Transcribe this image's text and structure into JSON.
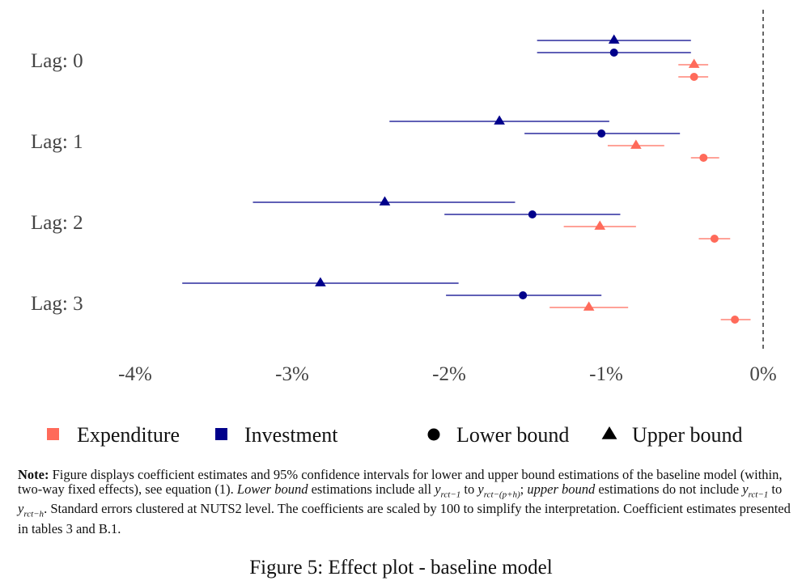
{
  "chart_data": {
    "type": "scatter",
    "title": "",
    "xlabel": "",
    "ylabel": "",
    "xlim": [
      -4.1,
      0.1
    ],
    "x_ticks": [
      -4,
      -3,
      -2,
      -1,
      0
    ],
    "x_tick_labels": [
      "-4%",
      "-3%",
      "-2%",
      "-1%",
      "0%"
    ],
    "categories": [
      "Lag: 0",
      "Lag: 1",
      "Lag: 2",
      "Lag: 3"
    ],
    "reference_line": {
      "x": 0,
      "style": "dashed"
    },
    "grid": false,
    "legend_placement": "bottom",
    "colors": {
      "Expenditure": "#FF6A5A",
      "Investment": "#00008B"
    },
    "shapes": {
      "Lower bound": "circle",
      "Upper bound": "triangle"
    },
    "legend": [
      {
        "label": "Expenditure",
        "kind": "color",
        "symbol": "square"
      },
      {
        "label": "Investment",
        "kind": "color",
        "symbol": "square"
      },
      {
        "label": "Lower bound",
        "kind": "shape",
        "symbol": "circle"
      },
      {
        "label": "Upper bound",
        "kind": "shape",
        "symbol": "triangle"
      }
    ],
    "series": [
      {
        "name": "Investment",
        "bound": "Upper bound",
        "estimate": [
          -0.95,
          -1.68,
          -2.41,
          -2.82
        ],
        "ci_low": [
          -1.44,
          -2.38,
          -3.25,
          -3.7
        ],
        "ci_high": [
          -0.46,
          -0.98,
          -1.58,
          -1.94
        ]
      },
      {
        "name": "Investment",
        "bound": "Lower bound",
        "estimate": [
          -0.95,
          -1.03,
          -1.47,
          -1.53
        ],
        "ci_low": [
          -1.44,
          -1.52,
          -2.03,
          -2.02
        ],
        "ci_high": [
          -0.46,
          -0.53,
          -0.91,
          -1.03
        ]
      },
      {
        "name": "Expenditure",
        "bound": "Upper bound",
        "estimate": [
          -0.44,
          -0.81,
          -1.04,
          -1.11
        ],
        "ci_low": [
          -0.54,
          -0.99,
          -1.27,
          -1.36
        ],
        "ci_high": [
          -0.35,
          -0.63,
          -0.81,
          -0.86
        ]
      },
      {
        "name": "Expenditure",
        "bound": "Lower bound",
        "estimate": [
          -0.44,
          -0.38,
          -0.31,
          -0.18
        ],
        "ci_low": [
          -0.54,
          -0.46,
          -0.41,
          -0.27
        ],
        "ci_high": [
          -0.35,
          -0.28,
          -0.21,
          -0.08
        ]
      }
    ]
  },
  "note": {
    "label": "Note:",
    "t1": " Figure displays coefficient estimates and 95% confidence intervals for lower and upper bound estimations of the baseline model (within, two-way fixed effects), see equation (1). ",
    "lower_bound": "Lower bound",
    "t2": " estimations include all ",
    "y1": "y",
    "s1": "rct−1",
    "t3": " to ",
    "y2": "y",
    "s2": "rct−(p+h)",
    "t4": "; ",
    "upper_bound": "upper bound",
    "t5": " estimations do not include ",
    "y3": "y",
    "s3": "rct−1",
    "t6": " to ",
    "y4": "y",
    "s4": "rct−h",
    "t7": ". Standard errors clustered at NUTS2 level. The coefficients are scaled by 100 to simplify the interpretation. Coefficient estimates presented in tables 3 and B.1."
  },
  "caption": "Figure 5: Effect plot - baseline model"
}
